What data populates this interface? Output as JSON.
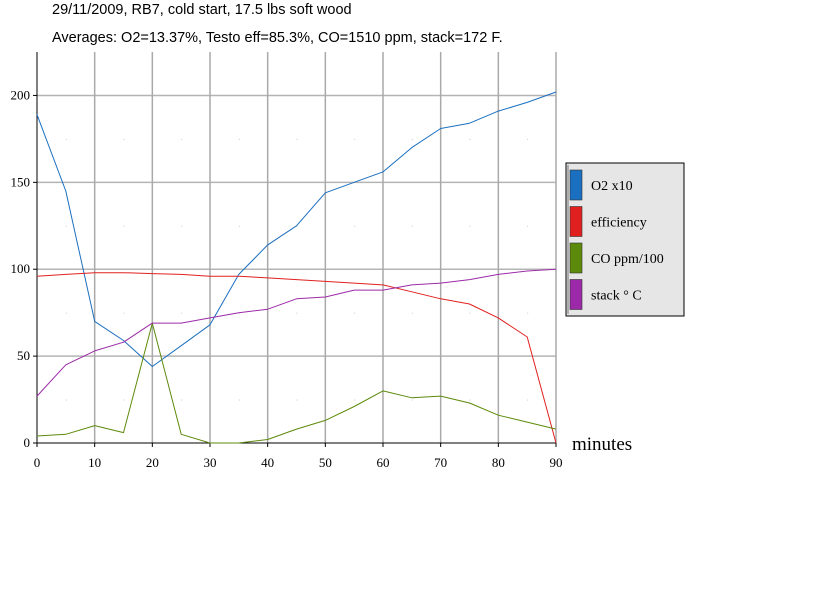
{
  "title_line1": "29/11/2009, RB7, cold start, 17.5 lbs soft wood",
  "title_line2": "Averages: O2=13.37%, Testo eff=85.3%, CO=1510 ppm, stack=172 F.",
  "chart_data": {
    "type": "line",
    "x_unit_label": "minutes",
    "xlim": [
      0,
      90
    ],
    "ylim": [
      0,
      225
    ],
    "x_ticks": [
      0,
      10,
      20,
      30,
      40,
      50,
      60,
      70,
      80,
      90
    ],
    "y_ticks": [
      0,
      50,
      100,
      150,
      200
    ],
    "grid": true,
    "legend_position": "right",
    "series": [
      {
        "name": "O2 x10",
        "color": "#1a6fc0",
        "x": [
          0,
          5,
          10,
          15,
          20,
          25,
          30,
          35,
          40,
          45,
          50,
          55,
          60,
          65,
          70,
          75,
          80,
          85,
          90
        ],
        "y": [
          189,
          145,
          70,
          59,
          44,
          56,
          68,
          97,
          114,
          125,
          144,
          150,
          156,
          170,
          181,
          184,
          191,
          196,
          202
        ]
      },
      {
        "name": "efficiency",
        "color": "#e0201f",
        "x": [
          0,
          5,
          10,
          15,
          20,
          25,
          30,
          35,
          40,
          45,
          50,
          55,
          60,
          65,
          70,
          75,
          80,
          85,
          90
        ],
        "y": [
          96,
          97,
          98,
          98,
          97.5,
          97,
          96,
          96,
          95,
          94,
          93,
          92,
          91,
          87,
          83,
          80,
          72,
          61,
          0
        ]
      },
      {
        "name": "CO ppm/100",
        "color": "#5c8a0a",
        "x": [
          0,
          5,
          10,
          15,
          20,
          25,
          30,
          35,
          40,
          45,
          50,
          55,
          60,
          65,
          70,
          75,
          80,
          85,
          90
        ],
        "y": [
          4,
          5,
          10,
          6,
          69,
          5,
          0,
          0,
          2,
          8,
          13,
          21,
          30,
          26,
          27,
          23,
          16,
          12,
          8
        ]
      },
      {
        "name": "stack ° C",
        "color": "#9c2aa8",
        "x": [
          0,
          5,
          10,
          15,
          20,
          25,
          30,
          35,
          40,
          45,
          50,
          55,
          60,
          65,
          70,
          75,
          80,
          85,
          90
        ],
        "y": [
          27,
          45,
          53,
          58,
          69,
          69,
          72,
          75,
          77,
          83,
          84,
          88,
          88,
          91,
          92,
          94,
          97,
          99,
          100
        ]
      }
    ]
  }
}
